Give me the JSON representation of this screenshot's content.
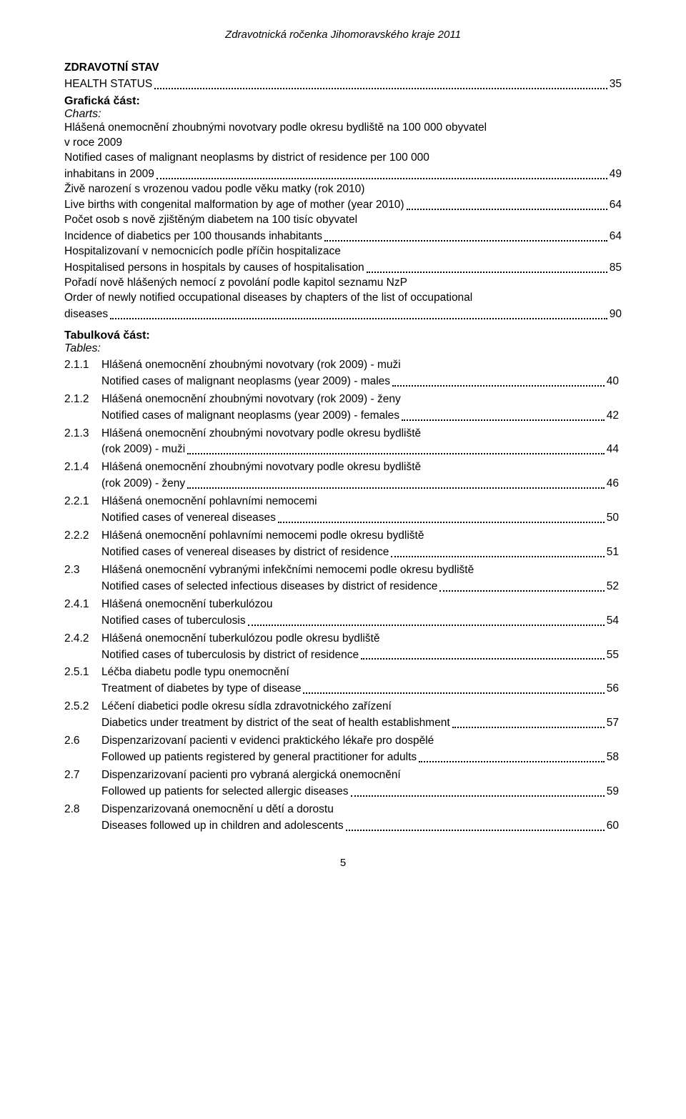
{
  "doc_header": "Zdravotnická ročenka Jihomoravského kraje 2011",
  "section_title_cz": "ZDRAVOTNÍ STAV",
  "section_title_en": "HEALTH STATUS",
  "section_page": "35",
  "charts_heading_cz": "Grafická část:",
  "charts_heading_en": "Charts:",
  "charts": [
    {
      "lines_cz": [
        "Hlášená onemocnění zhoubnými novotvary podle okresu bydliště na 100 000 obyvatel",
        "v roce 2009"
      ],
      "lines_en": [
        "Notified cases of malignant neoplasms by district of residence per 100 000"
      ],
      "last_en": "inhabitans in 2009",
      "page": "49"
    },
    {
      "lines_cz": [
        "Živě narození s vrozenou vadou podle věku matky (rok 2010)"
      ],
      "lines_en": [],
      "last_en": "Live births with congenital malformation by age of mother (year 2010)",
      "page": "64"
    },
    {
      "lines_cz": [
        "Počet osob s nově zjištěným diabetem na 100 tisíc obyvatel"
      ],
      "lines_en": [],
      "last_en": "Incidence of diabetics per 100 thousands inhabitants",
      "page": "64"
    },
    {
      "lines_cz": [
        "Hospitalizovaní v nemocnicích podle příčin hospitalizace"
      ],
      "lines_en": [],
      "last_en": "Hospitalised persons in hospitals by causes of hospitalisation",
      "page": "85"
    },
    {
      "lines_cz": [
        "Pořadí nově hlášených nemocí z povolání podle kapitol seznamu NzP"
      ],
      "lines_en": [
        "Order of newly notified occupational diseases by chapters of the list of occupational"
      ],
      "last_en": "diseases",
      "page": "90"
    }
  ],
  "tables_heading_cz": "Tabulková část:",
  "tables_heading_en": "Tables:",
  "tables": [
    {
      "num": "2.1.1",
      "cz": [
        "Hlášená onemocnění zhoubnými novotvary (rok 2009) - muži"
      ],
      "en_pre": [],
      "en_last": "Notified cases of malignant neoplasms (year 2009) - males",
      "page": "40"
    },
    {
      "num": "2.1.2",
      "cz": [
        "Hlášená onemocnění zhoubnými novotvary (rok 2009) - ženy"
      ],
      "en_pre": [],
      "en_last": "Notified cases of malignant neoplasms (year 2009) - females",
      "page": "42"
    },
    {
      "num": "2.1.3",
      "cz": [
        "Hlášená onemocnění zhoubnými novotvary podle okresu bydliště"
      ],
      "cz_last": "(rok 2009) - muži",
      "en_pre": [],
      "en_last": "",
      "page": "44"
    },
    {
      "num": "2.1.4",
      "cz": [
        "Hlášená onemocnění zhoubnými novotvary podle okresu bydliště"
      ],
      "cz_last": "(rok 2009) - ženy",
      "en_pre": [],
      "en_last": "",
      "page": "46"
    },
    {
      "num": "2.2.1",
      "cz": [
        "Hlášená onemocnění pohlavními nemocemi"
      ],
      "en_pre": [],
      "en_last": "Notified cases of venereal diseases",
      "page": "50"
    },
    {
      "num": "2.2.2",
      "cz": [
        "Hlášená onemocnění pohlavními nemocemi podle okresu bydliště"
      ],
      "en_pre": [],
      "en_last": "Notified cases of venereal diseases by district of residence",
      "page": "51"
    },
    {
      "num": "2.3",
      "cz": [
        "Hlášená onemocnění vybranými infekčními nemocemi podle okresu bydliště"
      ],
      "en_pre": [],
      "en_last": "Notified cases of selected infectious diseases by district of residence",
      "page": "52"
    },
    {
      "num": "2.4.1",
      "cz": [
        "Hlášená onemocnění tuberkulózou"
      ],
      "en_pre": [],
      "en_last": "Notified cases of tuberculosis",
      "page": "54"
    },
    {
      "num": "2.4.2",
      "cz": [
        "Hlášená onemocnění tuberkulózou podle okresu bydliště"
      ],
      "en_pre": [],
      "en_last": "Notified cases of tuberculosis by district of residence",
      "page": "55"
    },
    {
      "num": "2.5.1",
      "cz": [
        "Léčba diabetu podle typu onemocnění"
      ],
      "en_pre": [],
      "en_last": "Treatment of diabetes by type of disease",
      "page": "56"
    },
    {
      "num": "2.5.2",
      "cz": [
        "Léčení diabetici podle okresu sídla zdravotnického zařízení"
      ],
      "en_pre": [],
      "en_last": "Diabetics under treatment by district of the seat of health establishment",
      "page": "57"
    },
    {
      "num": "2.6",
      "cz": [
        "Dispenzarizovaní pacienti v evidenci praktického lékaře pro dospělé"
      ],
      "en_pre": [],
      "en_last": "Followed up patients registered by general practitioner for adults",
      "page": "58"
    },
    {
      "num": "2.7",
      "cz": [
        "Dispenzarizovaní pacienti pro vybraná alergická onemocnění"
      ],
      "en_pre": [],
      "en_last": "Followed up patients for selected allergic diseases",
      "page": "59"
    },
    {
      "num": "2.8",
      "cz": [
        "Dispenzarizovaná onemocnění u dětí a dorostu"
      ],
      "en_pre": [],
      "en_last": "Diseases followed up in children and adolescents",
      "page": "60"
    }
  ],
  "footer_page": "5"
}
